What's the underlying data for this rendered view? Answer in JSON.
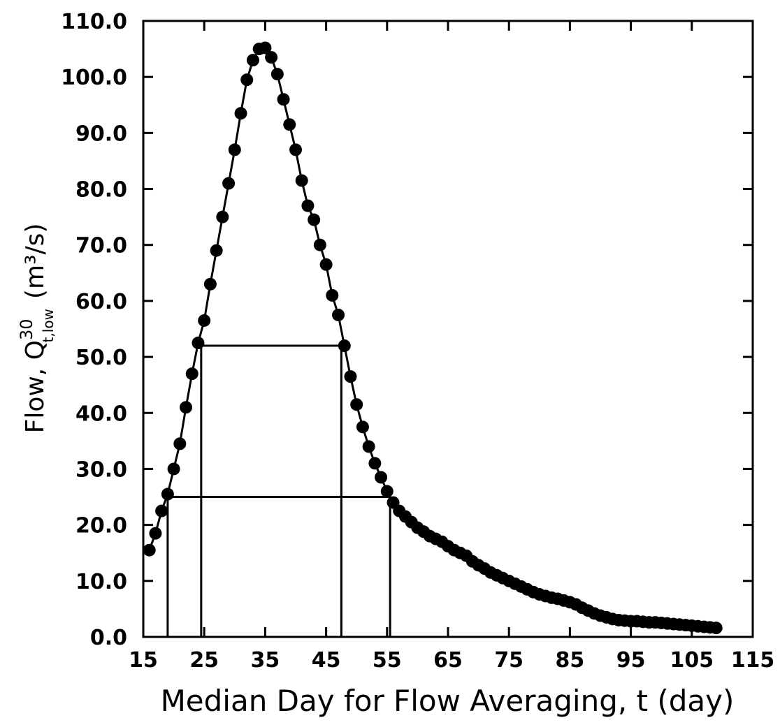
{
  "chart_data": {
    "type": "scatter-line",
    "xlabel": "Median Day for Flow Averaging, t (day)",
    "ylabel": "Flow,  Q",
    "ylabel_sup": "30",
    "ylabel_sub": "t,low",
    "ylabel_unit": "(m³/s)",
    "color": "#000000",
    "xlim": [
      15,
      115
    ],
    "xticks": [
      15,
      25,
      35,
      45,
      55,
      65,
      75,
      85,
      95,
      105,
      115
    ],
    "ylim": [
      0,
      110
    ],
    "yticks": [
      {
        "value": 0,
        "label": "0.0"
      },
      {
        "value": 10,
        "label": "10.0"
      },
      {
        "value": 20,
        "label": "20.0"
      },
      {
        "value": 30,
        "label": "30.0"
      },
      {
        "value": 40,
        "label": "40.0"
      },
      {
        "value": 50,
        "label": "50.0"
      },
      {
        "value": 60,
        "label": "60.0"
      },
      {
        "value": 70,
        "label": "70.0"
      },
      {
        "value": 80,
        "label": "80.0"
      },
      {
        "value": 90,
        "label": "90.0"
      },
      {
        "value": 100,
        "label": "100.0"
      },
      {
        "value": 110,
        "label": "110.0"
      }
    ],
    "x": [
      16,
      17,
      18,
      19,
      20,
      21,
      22,
      23,
      24,
      25,
      26,
      27,
      28,
      29,
      30,
      31,
      32,
      33,
      34,
      35,
      36,
      37,
      38,
      39,
      40,
      41,
      42,
      43,
      44,
      45,
      46,
      47,
      48,
      49,
      50,
      51,
      52,
      53,
      54,
      55,
      56,
      57,
      58,
      59,
      60,
      61,
      62,
      63,
      64,
      65,
      66,
      67,
      68,
      69,
      70,
      71,
      72,
      73,
      74,
      75,
      76,
      77,
      78,
      79,
      80,
      81,
      82,
      83,
      84,
      85,
      86,
      87,
      88,
      89,
      90,
      91,
      92,
      93,
      94,
      95,
      96,
      97,
      98,
      99,
      100,
      101,
      102,
      103,
      104,
      105,
      106,
      107,
      108,
      109
    ],
    "values": [
      15.5,
      18.5,
      22.5,
      25.5,
      30,
      34.5,
      41,
      47,
      52.5,
      56.5,
      63,
      69,
      75,
      81,
      87,
      93.5,
      99.5,
      103,
      105,
      105.2,
      103.5,
      100.5,
      96,
      91.5,
      87,
      81.5,
      77,
      74.5,
      70,
      66.5,
      61,
      57.5,
      52,
      46.5,
      41.5,
      37.5,
      34,
      31,
      28.5,
      26,
      24,
      22.5,
      21.5,
      20.5,
      19.5,
      18.8,
      18,
      17.5,
      17,
      16.2,
      15.5,
      15,
      14.5,
      13.5,
      12.8,
      12.2,
      11.5,
      11,
      10.5,
      10,
      9.5,
      9,
      8.5,
      8,
      7.6,
      7.3,
      7,
      6.8,
      6.5,
      6.2,
      5.8,
      5.2,
      4.7,
      4.2,
      3.8,
      3.5,
      3.2,
      3,
      2.9,
      2.8,
      2.8,
      2.7,
      2.6,
      2.6,
      2.5,
      2.4,
      2.3,
      2.2,
      2.1,
      2,
      1.9,
      1.8,
      1.7,
      1.6
    ],
    "reference_lines": [
      {
        "y": 52,
        "x": [
          24.5,
          47.5
        ]
      },
      {
        "y": 25,
        "x": [
          19,
          55.5
        ]
      }
    ]
  }
}
